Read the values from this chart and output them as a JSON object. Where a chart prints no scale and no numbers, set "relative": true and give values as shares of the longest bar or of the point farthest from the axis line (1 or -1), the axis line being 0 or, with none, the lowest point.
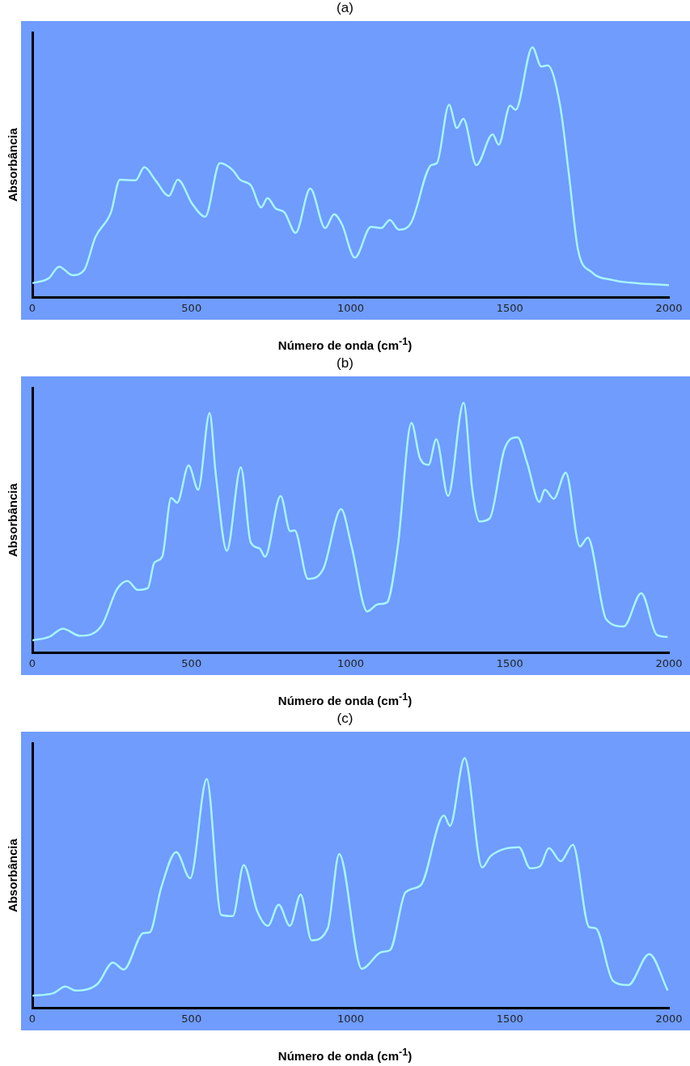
{
  "chart_data": [
    {
      "type": "line",
      "title": "(a)",
      "xlabel": "Número de onda (cm$^{-1}$)",
      "ylabel": "Absorbância",
      "relative": true,
      "color": "#a8f4ff",
      "xlim": [
        0,
        2000
      ],
      "xticks": [
        0,
        500,
        1000,
        1500,
        2000
      ],
      "grid": false,
      "legend": false,
      "marker": "none",
      "x": [
        0,
        52,
        84,
        126,
        163,
        198,
        247,
        275,
        324,
        352,
        387,
        429,
        457,
        503,
        543,
        589,
        631,
        652,
        687,
        719,
        739,
        764,
        792,
        827,
        873,
        920,
        948,
        973,
        1013,
        1064,
        1096,
        1123,
        1151,
        1190,
        1253,
        1271,
        1309,
        1334,
        1354,
        1395,
        1446,
        1465,
        1501,
        1518,
        1571,
        1599,
        1619,
        1658,
        1686,
        1714,
        1756,
        1825,
        1895,
        2000
      ],
      "values": [
        0.057,
        0.077,
        0.123,
        0.089,
        0.11,
        0.241,
        0.34,
        0.471,
        0.468,
        0.521,
        0.468,
        0.406,
        0.471,
        0.373,
        0.323,
        0.537,
        0.507,
        0.471,
        0.447,
        0.36,
        0.397,
        0.356,
        0.34,
        0.258,
        0.435,
        0.277,
        0.332,
        0.291,
        0.159,
        0.282,
        0.277,
        0.31,
        0.271,
        0.299,
        0.529,
        0.537,
        0.77,
        0.677,
        0.714,
        0.529,
        0.652,
        0.611,
        0.767,
        0.75,
        1,
        0.923,
        0.928,
        0.767,
        0.488,
        0.192,
        0.102,
        0.069,
        0.057,
        0.049
      ]
    },
    {
      "type": "line",
      "title": "(b)",
      "xlabel": "Número de onda (cm$^{-1}$)",
      "ylabel": "Absorbância",
      "relative": true,
      "color": "#a8f4ff",
      "xlim": [
        0,
        2000
      ],
      "xticks": [
        0,
        500,
        1000,
        1500,
        2000
      ],
      "grid": false,
      "legend": false,
      "marker": "none",
      "x": [
        0,
        52,
        96,
        149,
        218,
        266,
        299,
        331,
        363,
        383,
        408,
        436,
        455,
        491,
        521,
        557,
        576,
        611,
        655,
        686,
        714,
        731,
        780,
        810,
        824,
        866,
        914,
        970,
        1003,
        1052,
        1086,
        1114,
        1148,
        1191,
        1217,
        1245,
        1269,
        1306,
        1355,
        1382,
        1405,
        1437,
        1483,
        1524,
        1555,
        1593,
        1610,
        1638,
        1676,
        1720,
        1745,
        1803,
        1858,
        1913,
        1962,
        1996
      ],
      "values": [
        0.049,
        0.063,
        0.096,
        0.068,
        0.109,
        0.254,
        0.287,
        0.251,
        0.259,
        0.36,
        0.384,
        0.619,
        0.6,
        0.749,
        0.652,
        0.959,
        0.716,
        0.408,
        0.741,
        0.441,
        0.417,
        0.384,
        0.627,
        0.486,
        0.489,
        0.295,
        0.335,
        0.574,
        0.425,
        0.165,
        0.194,
        0.201,
        0.425,
        0.919,
        0.781,
        0.752,
        0.854,
        0.627,
        1,
        0.652,
        0.525,
        0.538,
        0.814,
        0.862,
        0.757,
        0.603,
        0.652,
        0.616,
        0.72,
        0.425,
        0.46,
        0.133,
        0.105,
        0.238,
        0.071,
        0.063
      ]
    },
    {
      "type": "line",
      "title": "(c)",
      "xlabel": "Número de onda (cm$^{-1}$)",
      "ylabel": "Absorbância",
      "relative": true,
      "color": "#a8f4ff",
      "xlim": [
        0,
        2000
      ],
      "xticks": [
        0,
        500,
        1000,
        1500,
        2000
      ],
      "grid": false,
      "legend": false,
      "marker": "none",
      "x": [
        0,
        67,
        104,
        136,
        205,
        253,
        287,
        349,
        369,
        404,
        452,
        496,
        548,
        593,
        630,
        664,
        706,
        740,
        774,
        809,
        843,
        877,
        928,
        964,
        1035,
        1097,
        1124,
        1172,
        1220,
        1293,
        1312,
        1358,
        1413,
        1440,
        1529,
        1564,
        1595,
        1623,
        1660,
        1698,
        1749,
        1770,
        1824,
        1872,
        1938,
        1996
      ],
      "values": [
        0.049,
        0.06,
        0.086,
        0.07,
        0.097,
        0.182,
        0.154,
        0.3,
        0.303,
        0.478,
        0.624,
        0.519,
        0.916,
        0.373,
        0.368,
        0.572,
        0.389,
        0.329,
        0.413,
        0.329,
        0.454,
        0.271,
        0.319,
        0.616,
        0.157,
        0.224,
        0.232,
        0.462,
        0.491,
        0.77,
        0.729,
        1,
        0.562,
        0.608,
        0.643,
        0.559,
        0.567,
        0.64,
        0.587,
        0.653,
        0.324,
        0.319,
        0.109,
        0.092,
        0.216,
        0.07
      ]
    }
  ]
}
